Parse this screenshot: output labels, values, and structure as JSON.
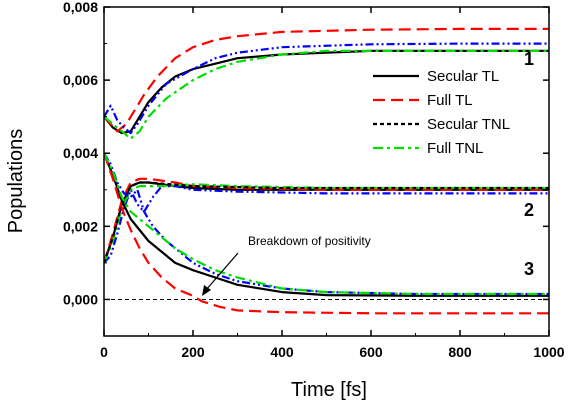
{
  "chart_data": {
    "type": "line",
    "title": "",
    "xlabel": "Time [fs]",
    "ylabel": "Populations",
    "xlim": [
      0,
      1000
    ],
    "ylim": [
      -0.001,
      0.008
    ],
    "x_ticks": [
      0,
      200,
      400,
      600,
      800,
      1000
    ],
    "x_tick_labels": [
      "0",
      "200",
      "400",
      "600",
      "800",
      "1000"
    ],
    "y_ticks": [
      0.0,
      0.002,
      0.004,
      0.006,
      0.008
    ],
    "y_tick_labels": [
      "0,000",
      "0,002",
      "0,004",
      "0,006",
      "0,008"
    ],
    "grid": false,
    "legend_position": "right, upper",
    "series": [
      {
        "name": "Secular TL",
        "color": "#000000",
        "style": "solid"
      },
      {
        "name": "Full TL",
        "color": "#ff0000",
        "style": "dashed"
      },
      {
        "name": "Secular TNL",
        "color": "#000000",
        "style": "short-dashed"
      },
      {
        "name": "Full TNL",
        "color": "#00dd00",
        "style": "dash-dot"
      },
      {
        "name": "",
        "color": "#0000ff",
        "style": "dash-dot-dot"
      }
    ],
    "group_labels": [
      "1",
      "2",
      "3"
    ],
    "annotation": "Breakdown of positivity",
    "baseline": {
      "y": 0.0,
      "color": "#000000",
      "style": "short-dashed"
    },
    "curves": [
      {
        "series": 0,
        "points": [
          [
            0,
            0.005
          ],
          [
            20,
            0.0047
          ],
          [
            40,
            0.00455
          ],
          [
            60,
            0.0046
          ],
          [
            80,
            0.005
          ],
          [
            100,
            0.0054
          ],
          [
            130,
            0.0058
          ],
          [
            160,
            0.0061
          ],
          [
            200,
            0.0063
          ],
          [
            250,
            0.00645
          ],
          [
            300,
            0.0066
          ],
          [
            400,
            0.0067
          ],
          [
            500,
            0.00675
          ],
          [
            600,
            0.0068
          ],
          [
            800,
            0.0068
          ],
          [
            1000,
            0.0068
          ]
        ]
      },
      {
        "series": 1,
        "points": [
          [
            0,
            0.005
          ],
          [
            15,
            0.0048
          ],
          [
            30,
            0.0046
          ],
          [
            50,
            0.0048
          ],
          [
            70,
            0.0052
          ],
          [
            90,
            0.0056
          ],
          [
            120,
            0.0061
          ],
          [
            160,
            0.0066
          ],
          [
            200,
            0.0069
          ],
          [
            250,
            0.0071
          ],
          [
            300,
            0.0072
          ],
          [
            400,
            0.00732
          ],
          [
            600,
            0.00738
          ],
          [
            800,
            0.0074
          ],
          [
            1000,
            0.0074
          ]
        ]
      },
      {
        "series": 4,
        "points": [
          [
            0,
            0.005
          ],
          [
            15,
            0.0053
          ],
          [
            30,
            0.0049
          ],
          [
            45,
            0.0047
          ],
          [
            60,
            0.00455
          ],
          [
            75,
            0.0048
          ],
          [
            100,
            0.0053
          ],
          [
            140,
            0.0059
          ],
          [
            200,
            0.0063
          ],
          [
            250,
            0.0066
          ],
          [
            300,
            0.00675
          ],
          [
            400,
            0.0069
          ],
          [
            600,
            0.00698
          ],
          [
            800,
            0.007
          ],
          [
            1000,
            0.007
          ]
        ]
      },
      {
        "series": 3,
        "points": [
          [
            0,
            0.005
          ],
          [
            20,
            0.0048
          ],
          [
            40,
            0.0046
          ],
          [
            60,
            0.0044
          ],
          [
            80,
            0.0046
          ],
          [
            100,
            0.005
          ],
          [
            140,
            0.0055
          ],
          [
            200,
            0.006
          ],
          [
            250,
            0.0063
          ],
          [
            300,
            0.0065
          ],
          [
            400,
            0.0067
          ],
          [
            500,
            0.0068
          ],
          [
            600,
            0.0068
          ],
          [
            800,
            0.0068
          ],
          [
            1000,
            0.0068
          ]
        ]
      },
      {
        "series": 0,
        "points": [
          [
            0,
            0.001
          ],
          [
            20,
            0.0017
          ],
          [
            40,
            0.0026
          ],
          [
            60,
            0.0031
          ],
          [
            80,
            0.0032
          ],
          [
            100,
            0.0032
          ],
          [
            130,
            0.00315
          ],
          [
            160,
            0.0031
          ],
          [
            200,
            0.00305
          ],
          [
            300,
            0.003
          ],
          [
            500,
            0.003
          ],
          [
            1000,
            0.003
          ]
        ]
      },
      {
        "series": 1,
        "points": [
          [
            0,
            0.001
          ],
          [
            20,
            0.0018
          ],
          [
            40,
            0.0027
          ],
          [
            60,
            0.0032
          ],
          [
            80,
            0.0033
          ],
          [
            100,
            0.0033
          ],
          [
            130,
            0.00325
          ],
          [
            160,
            0.0032
          ],
          [
            200,
            0.0031
          ],
          [
            300,
            0.00305
          ],
          [
            500,
            0.003
          ],
          [
            1000,
            0.003
          ]
        ]
      },
      {
        "series": 4,
        "points": [
          [
            0,
            0.001
          ],
          [
            15,
            0.0012
          ],
          [
            30,
            0.0018
          ],
          [
            45,
            0.0025
          ],
          [
            60,
            0.003
          ],
          [
            75,
            0.0026
          ],
          [
            90,
            0.0024
          ],
          [
            110,
            0.0028
          ],
          [
            130,
            0.0031
          ],
          [
            160,
            0.0031
          ],
          [
            200,
            0.003
          ],
          [
            300,
            0.00295
          ],
          [
            500,
            0.0029
          ],
          [
            1000,
            0.0029
          ]
        ]
      },
      {
        "series": 3,
        "points": [
          [
            0,
            0.001
          ],
          [
            20,
            0.0016
          ],
          [
            40,
            0.0025
          ],
          [
            60,
            0.003
          ],
          [
            80,
            0.0031
          ],
          [
            100,
            0.0031
          ],
          [
            130,
            0.0031
          ],
          [
            200,
            0.00315
          ],
          [
            300,
            0.0031
          ],
          [
            500,
            0.00305
          ],
          [
            1000,
            0.00305
          ]
        ]
      },
      {
        "series": 2,
        "points": [
          [
            0,
            0.001
          ],
          [
            20,
            0.0017
          ],
          [
            40,
            0.0026
          ],
          [
            60,
            0.0031
          ],
          [
            80,
            0.0032
          ],
          [
            100,
            0.0032
          ],
          [
            200,
            0.0031
          ],
          [
            400,
            0.00305
          ],
          [
            1000,
            0.00305
          ]
        ]
      },
      {
        "series": 0,
        "points": [
          [
            0,
            0.004
          ],
          [
            20,
            0.0034
          ],
          [
            40,
            0.0027
          ],
          [
            60,
            0.0022
          ],
          [
            80,
            0.0019
          ],
          [
            100,
            0.0016
          ],
          [
            130,
            0.0013
          ],
          [
            160,
            0.001
          ],
          [
            200,
            0.0008
          ],
          [
            250,
            0.0006
          ],
          [
            300,
            0.0004
          ],
          [
            400,
            0.0002
          ],
          [
            500,
            0.00012
          ],
          [
            700,
            0.0001
          ],
          [
            1000,
            0.0001
          ]
        ]
      },
      {
        "series": 1,
        "points": [
          [
            0,
            0.004
          ],
          [
            20,
            0.0033
          ],
          [
            40,
            0.0025
          ],
          [
            60,
            0.0019
          ],
          [
            80,
            0.0014
          ],
          [
            100,
            0.001
          ],
          [
            130,
            0.0006
          ],
          [
            160,
            0.0003
          ],
          [
            200,
            0.0001
          ],
          [
            220,
            -5e-05
          ],
          [
            260,
            -0.0002
          ],
          [
            300,
            -0.0003
          ],
          [
            400,
            -0.00035
          ],
          [
            600,
            -0.00038
          ],
          [
            1000,
            -0.00038
          ]
        ]
      },
      {
        "series": 4,
        "points": [
          [
            0,
            0.004
          ],
          [
            15,
            0.0037
          ],
          [
            30,
            0.0032
          ],
          [
            45,
            0.0029
          ],
          [
            60,
            0.0028
          ],
          [
            75,
            0.003
          ],
          [
            90,
            0.0024
          ],
          [
            110,
            0.002
          ],
          [
            140,
            0.0016
          ],
          [
            170,
            0.0013
          ],
          [
            200,
            0.001
          ],
          [
            250,
            0.0007
          ],
          [
            300,
            0.0005
          ],
          [
            400,
            0.0003
          ],
          [
            500,
            0.0002
          ],
          [
            700,
            0.00015
          ],
          [
            1000,
            0.00015
          ]
        ]
      },
      {
        "series": 3,
        "points": [
          [
            0,
            0.004
          ],
          [
            20,
            0.0035
          ],
          [
            40,
            0.0028
          ],
          [
            60,
            0.0024
          ],
          [
            80,
            0.0022
          ],
          [
            100,
            0.002
          ],
          [
            130,
            0.0017
          ],
          [
            160,
            0.0014
          ],
          [
            200,
            0.0011
          ],
          [
            250,
            0.0008
          ],
          [
            300,
            0.0006
          ],
          [
            400,
            0.0003
          ],
          [
            500,
            0.0002
          ],
          [
            700,
            0.00015
          ],
          [
            1000,
            0.00015
          ]
        ]
      }
    ]
  }
}
